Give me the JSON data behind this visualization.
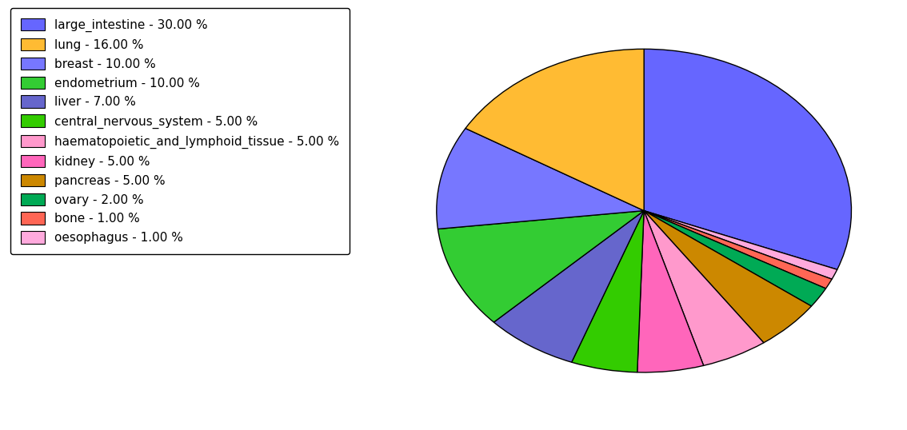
{
  "labels": [
    "large_intestine",
    "oesophagus",
    "bone",
    "ovary",
    "pancreas",
    "haematopoietic_and_lymphoid_tissue",
    "kidney",
    "central_nervous_system",
    "liver",
    "endometrium",
    "breast",
    "lung"
  ],
  "percentages": [
    30.0,
    1.0,
    1.0,
    2.0,
    5.0,
    5.0,
    5.0,
    5.0,
    7.0,
    10.0,
    10.0,
    16.0
  ],
  "colors": [
    "#6666ff",
    "#ffaadd",
    "#ff6655",
    "#00aa55",
    "#cc8800",
    "#ff99cc",
    "#ff66bb",
    "#33cc00",
    "#6666cc",
    "#33cc33",
    "#7777ff",
    "#ffbb33"
  ],
  "legend_labels": [
    "large_intestine - 30.00 %",
    "lung - 16.00 %",
    "breast - 10.00 %",
    "endometrium - 10.00 %",
    "liver - 7.00 %",
    "central_nervous_system - 5.00 %",
    "haematopoietic_and_lymphoid_tissue - 5.00 %",
    "kidney - 5.00 %",
    "pancreas - 5.00 %",
    "ovary - 2.00 %",
    "bone - 1.00 %",
    "oesophagus - 1.00 %"
  ],
  "legend_colors": [
    "#6666ff",
    "#ffbb33",
    "#7777ff",
    "#33cc33",
    "#6666cc",
    "#33cc00",
    "#ff99cc",
    "#ff66bb",
    "#cc8800",
    "#00aa55",
    "#ff6655",
    "#ffaadd"
  ],
  "startangle": 90,
  "counterclock": false,
  "aspect_ratio": 0.78,
  "figsize": [
    11.34,
    5.38
  ],
  "dpi": 100
}
